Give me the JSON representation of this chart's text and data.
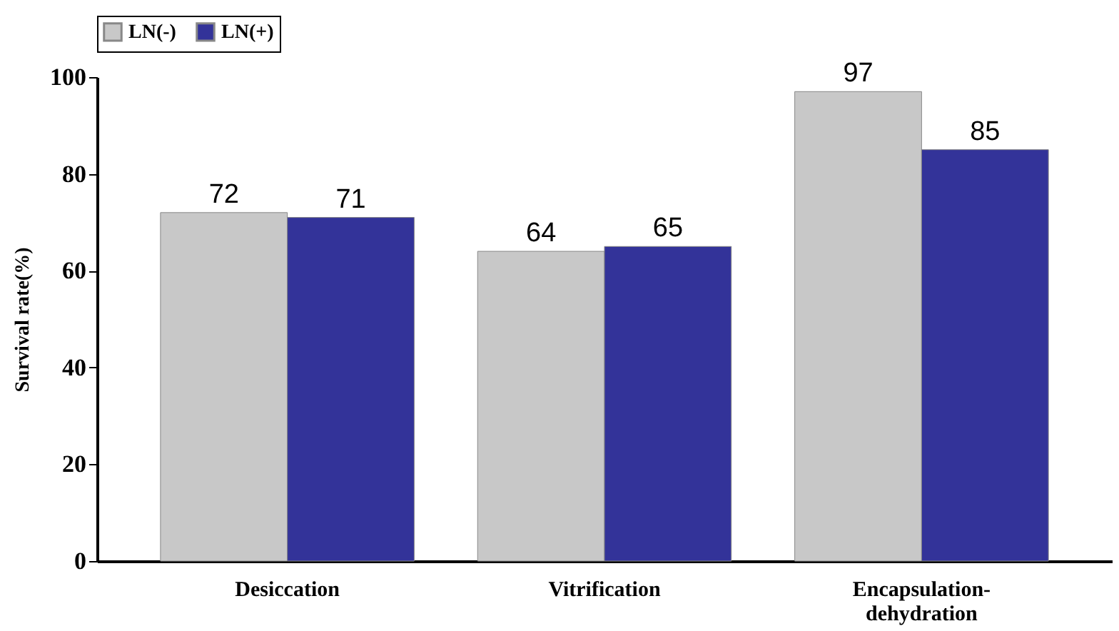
{
  "chart_data": {
    "type": "bar",
    "ylabel": "Survival rate(%)",
    "categories": [
      "Desiccation",
      "Vitrification",
      "Encapsulation-dehydration"
    ],
    "series": [
      {
        "name": "LN(-)",
        "color": "#c8c8c8",
        "values": [
          72,
          64,
          97
        ]
      },
      {
        "name": "LN(+)",
        "color": "#333399",
        "values": [
          71,
          65,
          85
        ]
      }
    ],
    "ylim": [
      0,
      100
    ],
    "yticks": [
      0,
      20,
      40,
      60,
      80,
      100
    ],
    "data_labels": true,
    "legend": "top",
    "grid": false
  }
}
